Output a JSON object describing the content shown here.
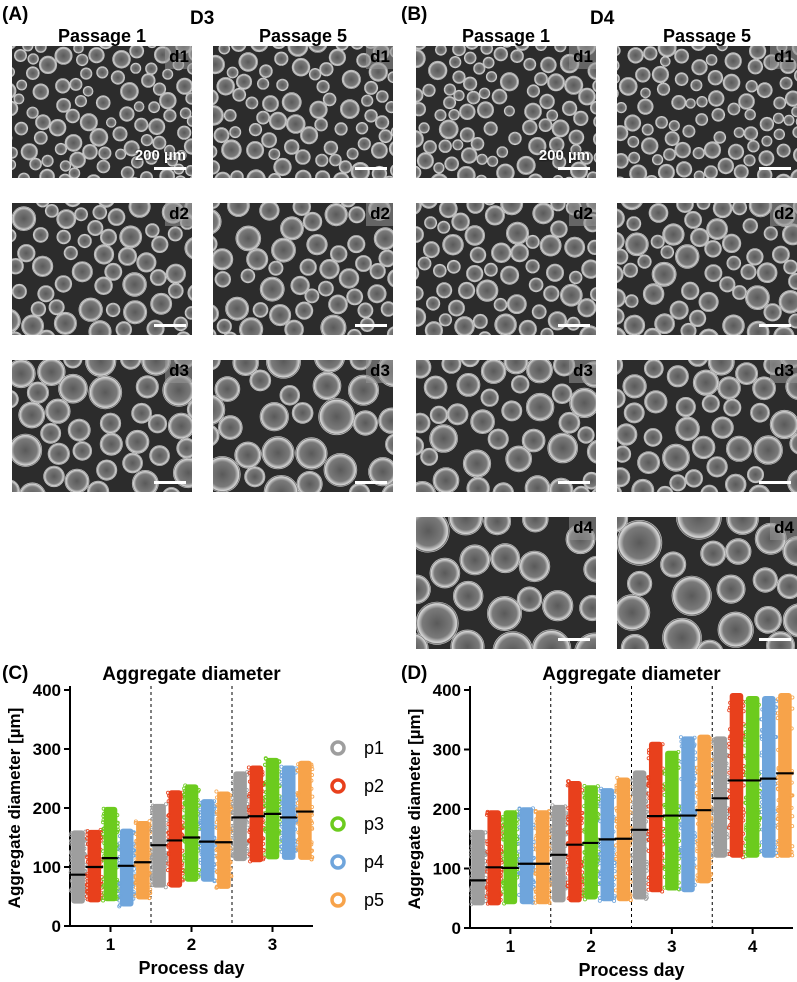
{
  "panels": {
    "A": {
      "label": "(A)",
      "title": "D3"
    },
    "B": {
      "label": "(B)",
      "title": "D4"
    },
    "C": {
      "label": "(C)"
    },
    "D": {
      "label": "(D)"
    }
  },
  "columns": [
    "Passage 1",
    "Passage 5",
    "Passage 1",
    "Passage 5"
  ],
  "micrographs": [
    {
      "group": "A",
      "col": 0,
      "day": "d1",
      "seed": 11,
      "density": 1.0,
      "scale_text": "200 µm"
    },
    {
      "group": "A",
      "col": 1,
      "day": "d1",
      "seed": 12,
      "density": 0.9
    },
    {
      "group": "A",
      "col": 0,
      "day": "d2",
      "seed": 13,
      "density": 0.75
    },
    {
      "group": "A",
      "col": 1,
      "day": "d2",
      "seed": 14,
      "density": 0.7
    },
    {
      "group": "A",
      "col": 0,
      "day": "d3",
      "seed": 15,
      "density": 0.55
    },
    {
      "group": "A",
      "col": 1,
      "day": "d3",
      "seed": 16,
      "density": 0.5
    },
    {
      "group": "B",
      "col": 0,
      "day": "d1",
      "seed": 21,
      "density": 0.95,
      "scale_text": "200 µm"
    },
    {
      "group": "B",
      "col": 1,
      "day": "d1",
      "seed": 22,
      "density": 1.0
    },
    {
      "group": "B",
      "col": 0,
      "day": "d2",
      "seed": 23,
      "density": 0.8
    },
    {
      "group": "B",
      "col": 1,
      "day": "d2",
      "seed": 24,
      "density": 0.75
    },
    {
      "group": "B",
      "col": 0,
      "day": "d3",
      "seed": 25,
      "density": 0.6
    },
    {
      "group": "B",
      "col": 1,
      "day": "d3",
      "seed": 26,
      "density": 0.6
    },
    {
      "group": "B",
      "col": 0,
      "day": "d4",
      "seed": 27,
      "density": 0.42
    },
    {
      "group": "B",
      "col": 1,
      "day": "d4",
      "seed": 28,
      "density": 0.4
    }
  ],
  "colors": {
    "p1": "#9e9e9e",
    "p2": "#e8401c",
    "p3": "#6ccb1e",
    "p4": "#6fa5dc",
    "p5": "#f7a34a"
  },
  "legend": [
    "p1",
    "p2",
    "p3",
    "p4",
    "p5"
  ],
  "chart_data": [
    {
      "type": "scatter",
      "title": "Aggregate diameter",
      "xlabel": "Process day",
      "ylabel": "Aggregate diameter [µm]",
      "ylim": [
        0,
        400
      ],
      "yticks": [
        "0",
        "100",
        "200",
        "300",
        "400"
      ],
      "categories": [
        "1",
        "2",
        "3"
      ],
      "grid": false,
      "series": [
        {
          "name": "p1",
          "day": "1",
          "min": 38,
          "max": 162,
          "median": 87
        },
        {
          "name": "p2",
          "day": "1",
          "min": 40,
          "max": 163,
          "median": 100
        },
        {
          "name": "p3",
          "day": "1",
          "min": 42,
          "max": 202,
          "median": 115
        },
        {
          "name": "p4",
          "day": "1",
          "min": 33,
          "max": 165,
          "median": 102
        },
        {
          "name": "p5",
          "day": "1",
          "min": 45,
          "max": 178,
          "median": 108
        },
        {
          "name": "p1",
          "day": "2",
          "min": 65,
          "max": 207,
          "median": 137
        },
        {
          "name": "p2",
          "day": "2",
          "min": 65,
          "max": 230,
          "median": 145
        },
        {
          "name": "p3",
          "day": "2",
          "min": 75,
          "max": 240,
          "median": 150
        },
        {
          "name": "p4",
          "day": "2",
          "min": 75,
          "max": 215,
          "median": 143
        },
        {
          "name": "p5",
          "day": "2",
          "min": 63,
          "max": 228,
          "median": 142
        },
        {
          "name": "p1",
          "day": "3",
          "min": 110,
          "max": 262,
          "median": 184
        },
        {
          "name": "p2",
          "day": "3",
          "min": 108,
          "max": 272,
          "median": 186
        },
        {
          "name": "p3",
          "day": "3",
          "min": 113,
          "max": 285,
          "median": 190
        },
        {
          "name": "p4",
          "day": "3",
          "min": 112,
          "max": 272,
          "median": 184
        },
        {
          "name": "p5",
          "day": "3",
          "min": 112,
          "max": 280,
          "median": 194
        }
      ]
    },
    {
      "type": "scatter",
      "title": "Aggregate diameter",
      "xlabel": "Process day",
      "ylabel": "Aggregate diameter [µm]",
      "ylim": [
        0,
        400
      ],
      "yticks": [
        "0",
        "100",
        "200",
        "300",
        "400"
      ],
      "categories": [
        "1",
        "2",
        "3",
        "4"
      ],
      "grid": false,
      "series": [
        {
          "name": "p1",
          "day": "1",
          "min": 38,
          "max": 165,
          "median": 80
        },
        {
          "name": "p2",
          "day": "1",
          "min": 38,
          "max": 198,
          "median": 102
        },
        {
          "name": "p3",
          "day": "1",
          "min": 40,
          "max": 198,
          "median": 101
        },
        {
          "name": "p4",
          "day": "1",
          "min": 40,
          "max": 203,
          "median": 108
        },
        {
          "name": "p5",
          "day": "1",
          "min": 40,
          "max": 198,
          "median": 108
        },
        {
          "name": "p1",
          "day": "2",
          "min": 43,
          "max": 207,
          "median": 123
        },
        {
          "name": "p2",
          "day": "2",
          "min": 43,
          "max": 247,
          "median": 140
        },
        {
          "name": "p3",
          "day": "2",
          "min": 48,
          "max": 240,
          "median": 143
        },
        {
          "name": "p4",
          "day": "2",
          "min": 45,
          "max": 235,
          "median": 149
        },
        {
          "name": "p5",
          "day": "2",
          "min": 45,
          "max": 253,
          "median": 150
        },
        {
          "name": "p1",
          "day": "3",
          "min": 48,
          "max": 265,
          "median": 165
        },
        {
          "name": "p2",
          "day": "3",
          "min": 60,
          "max": 313,
          "median": 188
        },
        {
          "name": "p3",
          "day": "3",
          "min": 63,
          "max": 298,
          "median": 189
        },
        {
          "name": "p4",
          "day": "3",
          "min": 60,
          "max": 322,
          "median": 189
        },
        {
          "name": "p5",
          "day": "3",
          "min": 75,
          "max": 325,
          "median": 198
        },
        {
          "name": "p1",
          "day": "4",
          "min": 118,
          "max": 322,
          "median": 218
        },
        {
          "name": "p2",
          "day": "4",
          "min": 118,
          "max": 395,
          "median": 248
        },
        {
          "name": "p3",
          "day": "4",
          "min": 118,
          "max": 390,
          "median": 248
        },
        {
          "name": "p4",
          "day": "4",
          "min": 118,
          "max": 390,
          "median": 251
        },
        {
          "name": "p5",
          "day": "4",
          "min": 118,
          "max": 395,
          "median": 260
        }
      ]
    }
  ]
}
